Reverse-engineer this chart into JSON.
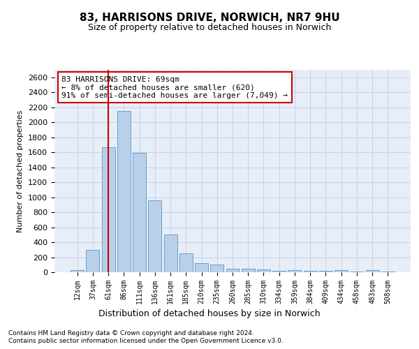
{
  "title": "83, HARRISONS DRIVE, NORWICH, NR7 9HU",
  "subtitle": "Size of property relative to detached houses in Norwich",
  "xlabel": "Distribution of detached houses by size in Norwich",
  "ylabel": "Number of detached properties",
  "footnote1": "Contains HM Land Registry data © Crown copyright and database right 2024.",
  "footnote2": "Contains public sector information licensed under the Open Government Licence v3.0.",
  "annotation_line1": "83 HARRISONS DRIVE: 69sqm",
  "annotation_line2": "← 8% of detached houses are smaller (620)",
  "annotation_line3": "91% of semi-detached houses are larger (7,049) →",
  "bar_labels": [
    "12sqm",
    "37sqm",
    "61sqm",
    "86sqm",
    "111sqm",
    "136sqm",
    "161sqm",
    "185sqm",
    "210sqm",
    "235sqm",
    "260sqm",
    "285sqm",
    "310sqm",
    "334sqm",
    "359sqm",
    "384sqm",
    "409sqm",
    "434sqm",
    "458sqm",
    "483sqm",
    "508sqm"
  ],
  "bar_values": [
    25,
    300,
    1670,
    2150,
    1590,
    960,
    500,
    250,
    120,
    100,
    50,
    50,
    35,
    20,
    30,
    20,
    20,
    30,
    5,
    25,
    5
  ],
  "bar_color": "#b8d0ea",
  "bar_edge_color": "#6a9fc8",
  "vline_color": "#cc0000",
  "vline_x": 2.0,
  "ylim": [
    0,
    2700
  ],
  "yticks": [
    0,
    200,
    400,
    600,
    800,
    1000,
    1200,
    1400,
    1600,
    1800,
    2000,
    2200,
    2400,
    2600
  ],
  "background_color": "#e8eef8",
  "annotation_box_color": "#ffffff",
  "annotation_box_edge": "#cc0000",
  "grid_color": "#c8d4e8",
  "title_fontsize": 11,
  "subtitle_fontsize": 9
}
